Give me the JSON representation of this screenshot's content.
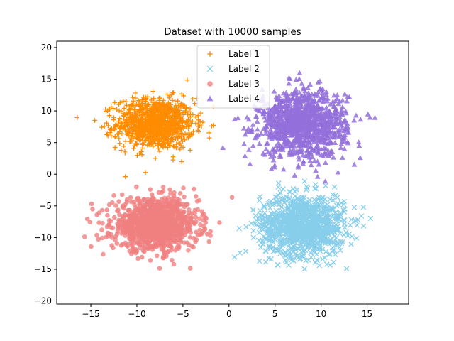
{
  "chart_data": {
    "type": "scatter",
    "title": "Dataset with 10000 samples",
    "xlabel": "",
    "ylabel": "",
    "xlim": [
      -18.7,
      19.5
    ],
    "ylim": [
      -20.5,
      21.0
    ],
    "xticks": [
      -15,
      -10,
      -5,
      0,
      5,
      10,
      15
    ],
    "yticks": [
      -20,
      -15,
      -10,
      -5,
      0,
      5,
      10,
      15,
      20
    ],
    "grid": false,
    "legend_position": "top-center",
    "total_samples": 10000,
    "series": [
      {
        "name": "Label 1",
        "marker": "plus",
        "color": "#ff8c00",
        "center": [
          -8,
          8
        ],
        "spread": [
          2.1,
          2.0
        ],
        "count": 2500
      },
      {
        "name": "Label 2",
        "marker": "x",
        "color": "#87ceeb",
        "center": [
          8,
          -8
        ],
        "spread": [
          2.3,
          2.4
        ],
        "count": 2500
      },
      {
        "name": "Label 3",
        "marker": "circle",
        "color": "#f08080",
        "center": [
          -8,
          -8
        ],
        "spread": [
          2.3,
          2.0
        ],
        "count": 2500
      },
      {
        "name": "Label 4",
        "marker": "triangle",
        "color": "#9370db",
        "center": [
          8,
          8
        ],
        "spread": [
          2.4,
          2.6
        ],
        "count": 2500
      }
    ]
  }
}
